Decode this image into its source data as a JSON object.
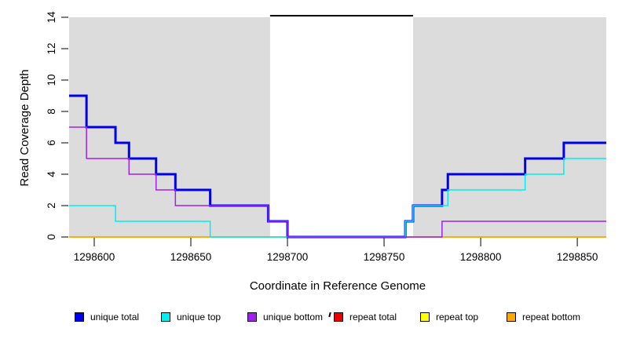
{
  "figure": {
    "background": "#ffffff",
    "shaded_band_color": "#DCDCDC"
  },
  "chart_data": {
    "type": "line",
    "line_style": "step",
    "title": "",
    "xlabel": "Coordinate in Reference Genome",
    "ylabel": "Read Coverage Depth",
    "xlim": [
      1298587,
      1298865
    ],
    "ylim": [
      0,
      14
    ],
    "x_ticks": [
      "1298600",
      "1298650",
      "1298700",
      "1298750",
      "1298800",
      "1298850"
    ],
    "x_tick_values": [
      1298600,
      1298650,
      1298700,
      1298750,
      1298800,
      1298850
    ],
    "y_ticks": [
      "0",
      "2",
      "4",
      "6",
      "8",
      "10",
      "12",
      "14"
    ],
    "y_tick_values": [
      0,
      2,
      4,
      6,
      8,
      10,
      12,
      14
    ],
    "grid": false,
    "legend_position": "bottom",
    "x_end": 1298865,
    "shaded_regions": [
      {
        "x1": 1298587,
        "x2": 1298691,
        "color": "#DCDCDC"
      },
      {
        "x1": 1298765,
        "x2": 1298865,
        "color": "#DCDCDC"
      }
    ],
    "annotation_segment": {
      "x1": 1298691,
      "x2": 1298765,
      "y": 14.1,
      "color": "#000000",
      "width": 2
    },
    "series": [
      {
        "name": "repeat total",
        "color": "#EE0000",
        "width": 1.5,
        "steps": [
          [
            1298587,
            0
          ]
        ]
      },
      {
        "name": "repeat top",
        "color": "#FFFF00",
        "width": 1.5,
        "steps": [
          [
            1298587,
            0
          ]
        ]
      },
      {
        "name": "repeat bottom",
        "color": "#FFA500",
        "width": 1.5,
        "steps": [
          [
            1298587,
            0
          ]
        ]
      },
      {
        "name": "unique total",
        "color": "#0000EE",
        "width": 3,
        "steps": [
          [
            1298587,
            9
          ],
          [
            1298596,
            7
          ],
          [
            1298611,
            6
          ],
          [
            1298618,
            5
          ],
          [
            1298632,
            4
          ],
          [
            1298642,
            3
          ],
          [
            1298660,
            2
          ],
          [
            1298690,
            1
          ],
          [
            1298700,
            0
          ],
          [
            1298761,
            1
          ],
          [
            1298765,
            2
          ],
          [
            1298780,
            3
          ],
          [
            1298783,
            4
          ],
          [
            1298823,
            5
          ],
          [
            1298843,
            6
          ]
        ]
      },
      {
        "name": "unique top",
        "color": "#00EEEE",
        "width": 1.5,
        "steps": [
          [
            1298587,
            2
          ],
          [
            1298611,
            1
          ],
          [
            1298660,
            0
          ],
          [
            1298761,
            1
          ],
          [
            1298765,
            2
          ],
          [
            1298783,
            3
          ],
          [
            1298823,
            4
          ],
          [
            1298843,
            5
          ]
        ]
      },
      {
        "name": "unique bottom",
        "color": "#A020F0",
        "width": 1.5,
        "steps": [
          [
            1298587,
            7
          ],
          [
            1298596,
            5
          ],
          [
            1298618,
            4
          ],
          [
            1298632,
            3
          ],
          [
            1298642,
            2
          ],
          [
            1298690,
            1
          ],
          [
            1298700,
            0
          ],
          [
            1298780,
            1
          ]
        ]
      }
    ]
  },
  "legend": {
    "items": [
      {
        "label": "unique total",
        "color": "#0000EE"
      },
      {
        "label": "unique top",
        "color": "#00EEEE"
      },
      {
        "label": "unique bottom",
        "color": "#A020F0"
      },
      {
        "label": "repeat total",
        "color": "#EE0000"
      },
      {
        "label": "repeat top",
        "color": "#FFFF00"
      },
      {
        "label": "repeat bottom",
        "color": "#FFA500"
      }
    ]
  }
}
